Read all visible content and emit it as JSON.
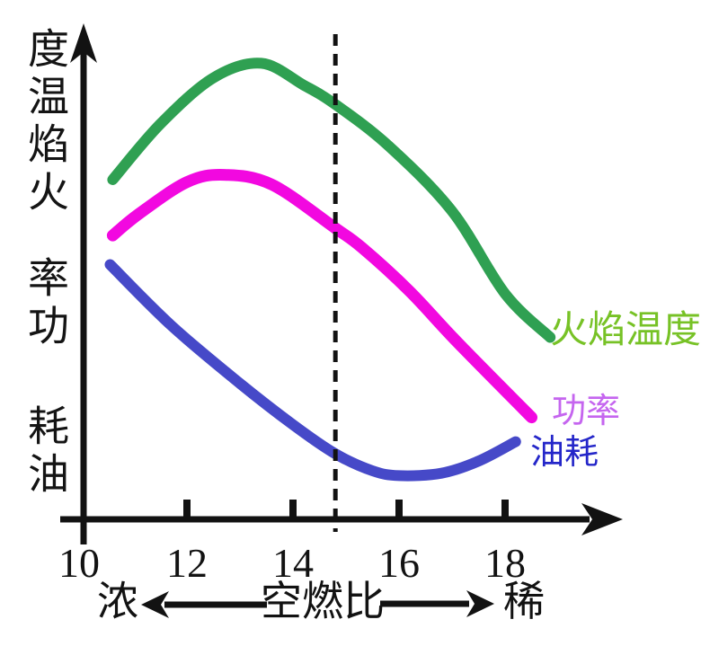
{
  "y_axis": {
    "vertical_labels": [
      "度温焰火",
      "率功",
      "耗油"
    ],
    "meaning": "labels read bottom-to-top: 火焰温度 / 功率 / 油耗"
  },
  "x_axis": {
    "title": "空燃比",
    "rich_label": "浓",
    "lean_label": "稀",
    "tick_labels": [
      "10",
      "12",
      "14",
      "16",
      "18"
    ]
  },
  "chart_data": {
    "type": "line",
    "title": "",
    "xlabel": "空燃比",
    "ylabel": "火焰温度 / 功率 / 油耗 (相对值, 无刻度)",
    "x_ticks": [
      10,
      12,
      14,
      16,
      18
    ],
    "x_range": [
      10,
      19.3
    ],
    "ylim": [
      0,
      100
    ],
    "grid": false,
    "legend_position": "right of curve ends",
    "x_annotation": {
      "left": "浓",
      "right": "稀"
    },
    "dashed_vertical_line_x": 14.8,
    "series": [
      {
        "name": "火焰温度",
        "color": "#2fa052",
        "label_color": "#77c226",
        "points": [
          [
            10.6,
            70
          ],
          [
            11.5,
            81.5
          ],
          [
            12.5,
            91
          ],
          [
            13.4,
            94
          ],
          [
            14.2,
            89.5
          ],
          [
            14.8,
            85.5
          ],
          [
            15.8,
            77
          ],
          [
            17.0,
            63.5
          ],
          [
            18.0,
            46.5
          ],
          [
            18.85,
            37.5
          ]
        ]
      },
      {
        "name": "功率",
        "color": "#f208e0",
        "label_color": "#c565ef",
        "points": [
          [
            10.6,
            58.5
          ],
          [
            11.1,
            63
          ],
          [
            12.0,
            69.5
          ],
          [
            12.7,
            71
          ],
          [
            13.6,
            69
          ],
          [
            14.8,
            60
          ],
          [
            15.3,
            56
          ],
          [
            16.2,
            47
          ],
          [
            17.1,
            36.5
          ],
          [
            18.5,
            21
          ]
        ]
      },
      {
        "name": "油耗",
        "color": "#4649c8",
        "label_color": "#2426c9",
        "points": [
          [
            10.55,
            52.5
          ],
          [
            11.7,
            40
          ],
          [
            13.0,
            28
          ],
          [
            14.0,
            19.5
          ],
          [
            14.8,
            13.5
          ],
          [
            15.5,
            10
          ],
          [
            16.0,
            9
          ],
          [
            16.8,
            9.5
          ],
          [
            17.5,
            12
          ],
          [
            18.2,
            16
          ]
        ]
      }
    ]
  }
}
